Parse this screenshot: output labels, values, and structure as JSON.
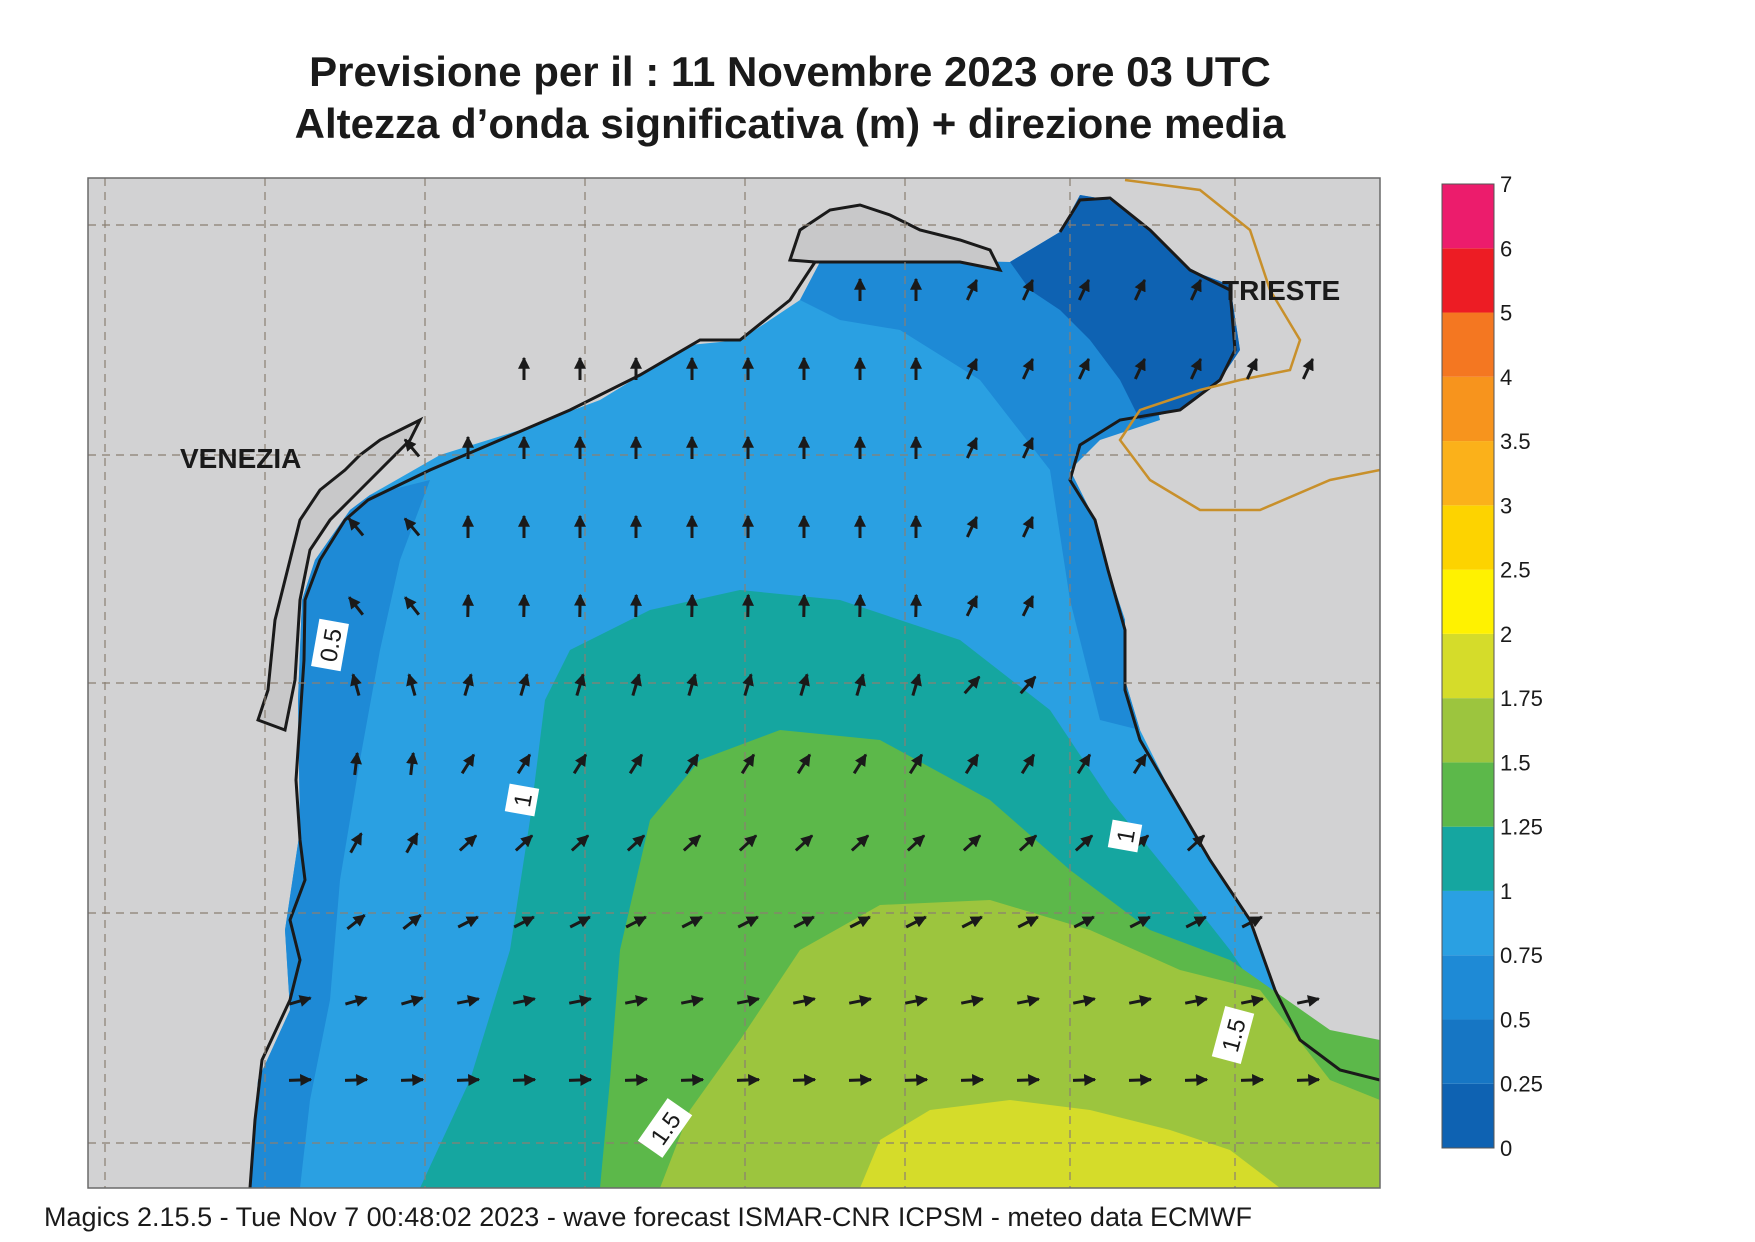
{
  "header": {
    "title_line1": "Previsione per il  :  11 Novembre  2023   ore 03 UTC",
    "title_line2": "Altezza d’onda significativa (m) + direzione media"
  },
  "map": {
    "place_labels": [
      "VENEZIA",
      "TRIESTE"
    ],
    "contour_labels": [
      "0.5",
      "1",
      "1",
      "1.5",
      "1.5"
    ],
    "colors": {
      "land": "#d2d2d3",
      "coast": "#1a1a1a",
      "grid": "#8a7f72",
      "border": "#c8902b",
      "arrow": "#1a1a1a"
    }
  },
  "legend": {
    "levels": [
      "0",
      "0.25",
      "0.5",
      "0.75",
      "1",
      "1.25",
      "1.5",
      "1.75",
      "2",
      "2.5",
      "3",
      "3.5",
      "4",
      "5",
      "6",
      "7"
    ],
    "colors": [
      "#0e62b2",
      "#1676c4",
      "#1e8ad6",
      "#2aa0e2",
      "#15a6a0",
      "#5cb84a",
      "#9cc53e",
      "#d5dc2a",
      "#fff200",
      "#fdd300",
      "#fbb11a",
      "#f7941d",
      "#f47721",
      "#ed1c24",
      "#ec1c6c"
    ]
  },
  "footer": {
    "text": "Magics 2.15.5 - Tue Nov  7 00:48:02 2023 - wave forecast  ISMAR-CNR  ICPSM - meteo data   ECMWF"
  }
}
